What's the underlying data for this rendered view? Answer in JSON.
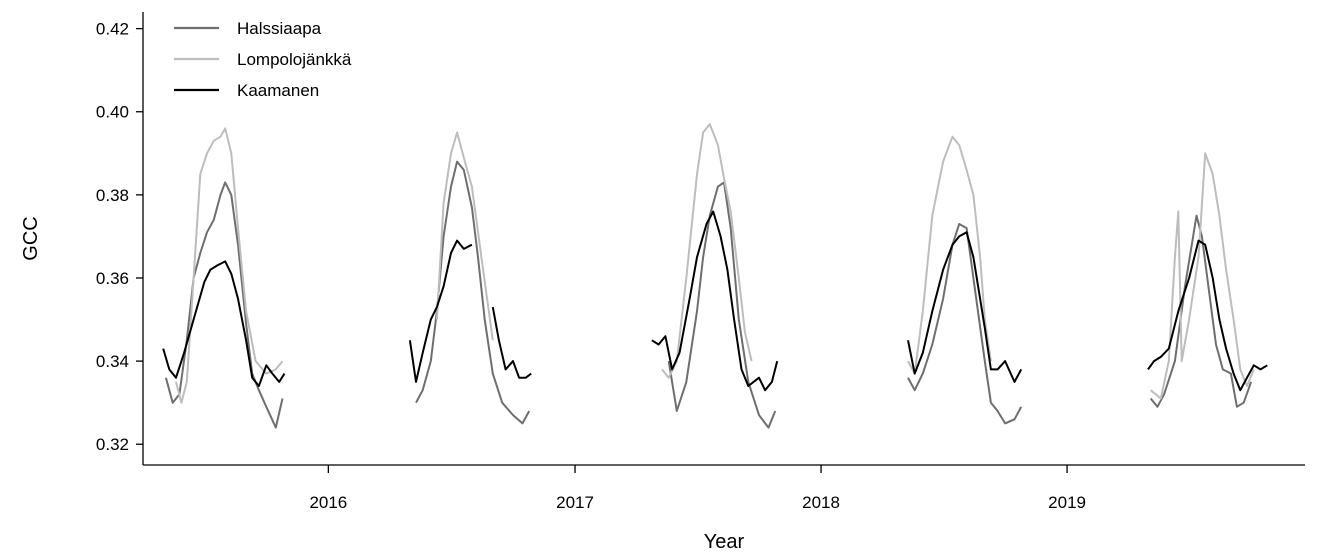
{
  "chart_data": {
    "type": "line",
    "xlabel": "Year",
    "ylabel": "GCC",
    "xlim": [
      "2015-04-01",
      "2019-12-20"
    ],
    "ylim": [
      0.315,
      0.424
    ],
    "x_ticks": [
      "2016-01-01",
      "2017-01-01",
      "2018-01-01",
      "2019-01-01"
    ],
    "x_tick_labels": [
      "2016",
      "2017",
      "2018",
      "2019"
    ],
    "y_ticks": [
      0.32,
      0.34,
      0.36,
      0.38,
      0.4,
      0.42
    ],
    "y_tick_labels": [
      "0.32",
      "0.34",
      "0.36",
      "0.38",
      "0.40",
      "0.42"
    ],
    "grid": false,
    "legend_position": "top-left",
    "series": [
      {
        "name": "Halssiaapa",
        "color": "#6e6e6e",
        "segments": [
          [
            [
              "2015-05-05",
              0.336
            ],
            [
              "2015-05-15",
              0.33
            ],
            [
              "2015-05-25",
              0.332
            ],
            [
              "2015-06-05",
              0.345
            ],
            [
              "2015-06-15",
              0.36
            ],
            [
              "2015-06-25",
              0.366
            ],
            [
              "2015-07-05",
              0.371
            ],
            [
              "2015-07-15",
              0.374
            ],
            [
              "2015-07-25",
              0.38
            ],
            [
              "2015-08-01",
              0.383
            ],
            [
              "2015-08-10",
              0.38
            ],
            [
              "2015-08-20",
              0.368
            ],
            [
              "2015-09-01",
              0.349
            ],
            [
              "2015-09-10",
              0.337
            ],
            [
              "2015-09-20",
              0.333
            ],
            [
              "2015-10-01",
              0.329
            ],
            [
              "2015-10-15",
              0.324
            ],
            [
              "2015-10-25",
              0.331
            ]
          ],
          [
            [
              "2016-05-10",
              0.33
            ],
            [
              "2016-05-20",
              0.333
            ],
            [
              "2016-06-01",
              0.34
            ],
            [
              "2016-06-10",
              0.352
            ],
            [
              "2016-06-20",
              0.37
            ],
            [
              "2016-07-01",
              0.382
            ],
            [
              "2016-07-10",
              0.388
            ],
            [
              "2016-07-20",
              0.386
            ],
            [
              "2016-08-01",
              0.377
            ],
            [
              "2016-08-10",
              0.365
            ],
            [
              "2016-08-20",
              0.35
            ],
            [
              "2016-09-01",
              0.337
            ],
            [
              "2016-09-15",
              0.33
            ],
            [
              "2016-10-01",
              0.327
            ],
            [
              "2016-10-15",
              0.325
            ],
            [
              "2016-10-25",
              0.328
            ]
          ],
          [
            [
              "2017-05-20",
              0.34
            ],
            [
              "2017-06-01",
              0.328
            ],
            [
              "2017-06-15",
              0.335
            ],
            [
              "2017-07-01",
              0.352
            ],
            [
              "2017-07-10",
              0.365
            ],
            [
              "2017-07-20",
              0.375
            ],
            [
              "2017-08-01",
              0.382
            ],
            [
              "2017-08-10",
              0.383
            ],
            [
              "2017-08-20",
              0.372
            ],
            [
              "2017-09-01",
              0.35
            ],
            [
              "2017-09-15",
              0.335
            ],
            [
              "2017-10-01",
              0.327
            ],
            [
              "2017-10-15",
              0.324
            ],
            [
              "2017-10-25",
              0.328
            ]
          ],
          [
            [
              "2018-05-10",
              0.336
            ],
            [
              "2018-05-20",
              0.333
            ],
            [
              "2018-06-01",
              0.337
            ],
            [
              "2018-06-15",
              0.344
            ],
            [
              "2018-07-01",
              0.355
            ],
            [
              "2018-07-15",
              0.368
            ],
            [
              "2018-07-25",
              0.373
            ],
            [
              "2018-08-05",
              0.372
            ],
            [
              "2018-08-15",
              0.36
            ],
            [
              "2018-09-01",
              0.34
            ],
            [
              "2018-09-10",
              0.33
            ],
            [
              "2018-09-20",
              0.328
            ],
            [
              "2018-10-01",
              0.325
            ],
            [
              "2018-10-15",
              0.326
            ],
            [
              "2018-10-25",
              0.329
            ]
          ],
          [
            [
              "2019-05-05",
              0.331
            ],
            [
              "2019-05-15",
              0.329
            ],
            [
              "2019-05-25",
              0.332
            ],
            [
              "2019-06-10",
              0.34
            ],
            [
              "2019-06-25",
              0.358
            ],
            [
              "2019-07-05",
              0.368
            ],
            [
              "2019-07-12",
              0.375
            ],
            [
              "2019-07-20",
              0.37
            ],
            [
              "2019-08-01",
              0.355
            ],
            [
              "2019-08-10",
              0.344
            ],
            [
              "2019-08-20",
              0.338
            ],
            [
              "2019-09-01",
              0.337
            ],
            [
              "2019-09-10",
              0.329
            ],
            [
              "2019-09-20",
              0.33
            ],
            [
              "2019-10-01",
              0.335
            ]
          ]
        ]
      },
      {
        "name": "Lompolojänkkä",
        "color": "#bdbdbd",
        "segments": [
          [
            [
              "2015-05-20",
              0.335
            ],
            [
              "2015-05-28",
              0.33
            ],
            [
              "2015-06-05",
              0.335
            ],
            [
              "2015-06-15",
              0.36
            ],
            [
              "2015-06-25",
              0.385
            ],
            [
              "2015-07-05",
              0.39
            ],
            [
              "2015-07-15",
              0.393
            ],
            [
              "2015-07-25",
              0.394
            ],
            [
              "2015-08-01",
              0.396
            ],
            [
              "2015-08-10",
              0.39
            ],
            [
              "2015-08-20",
              0.372
            ],
            [
              "2015-09-01",
              0.352
            ],
            [
              "2015-09-15",
              0.34
            ],
            [
              "2015-10-01",
              0.337
            ],
            [
              "2015-10-15",
              0.338
            ],
            [
              "2015-10-25",
              0.34
            ]
          ],
          [
            [
              "2016-06-10",
              0.35
            ],
            [
              "2016-06-20",
              0.378
            ],
            [
              "2016-07-01",
              0.39
            ],
            [
              "2016-07-10",
              0.395
            ],
            [
              "2016-07-20",
              0.389
            ],
            [
              "2016-08-01",
              0.382
            ],
            [
              "2016-08-15",
              0.365
            ],
            [
              "2016-09-01",
              0.345
            ]
          ],
          [
            [
              "2017-05-10",
              0.338
            ],
            [
              "2017-05-20",
              0.336
            ],
            [
              "2017-06-01",
              0.34
            ],
            [
              "2017-06-15",
              0.36
            ],
            [
              "2017-07-01",
              0.385
            ],
            [
              "2017-07-10",
              0.395
            ],
            [
              "2017-07-20",
              0.397
            ],
            [
              "2017-08-01",
              0.392
            ],
            [
              "2017-08-10",
              0.384
            ],
            [
              "2017-08-20",
              0.376
            ],
            [
              "2017-09-01",
              0.36
            ],
            [
              "2017-09-10",
              0.347
            ],
            [
              "2017-09-20",
              0.34
            ]
          ],
          [
            [
              "2018-05-10",
              0.34
            ],
            [
              "2018-05-20",
              0.337
            ],
            [
              "2018-06-01",
              0.352
            ],
            [
              "2018-06-15",
              0.375
            ],
            [
              "2018-07-01",
              0.388
            ],
            [
              "2018-07-15",
              0.394
            ],
            [
              "2018-07-25",
              0.392
            ],
            [
              "2018-08-05",
              0.386
            ],
            [
              "2018-08-15",
              0.38
            ],
            [
              "2018-08-25",
              0.365
            ],
            [
              "2018-09-01",
              0.35
            ],
            [
              "2018-09-10",
              0.34
            ]
          ],
          [
            [
              "2019-05-05",
              0.333
            ],
            [
              "2019-05-20",
              0.331
            ],
            [
              "2019-06-01",
              0.34
            ],
            [
              "2019-06-10",
              0.365
            ],
            [
              "2019-06-15",
              0.376
            ],
            [
              "2019-06-20",
              0.34
            ],
            [
              "2019-07-01",
              0.35
            ],
            [
              "2019-07-15",
              0.365
            ],
            [
              "2019-07-25",
              0.39
            ],
            [
              "2019-08-05",
              0.385
            ],
            [
              "2019-08-15",
              0.375
            ],
            [
              "2019-08-25",
              0.362
            ],
            [
              "2019-09-05",
              0.35
            ],
            [
              "2019-09-15",
              0.338
            ],
            [
              "2019-09-25",
              0.334
            ],
            [
              "2019-10-05",
              0.338
            ]
          ]
        ]
      },
      {
        "name": "Kaamanen",
        "color": "#000000",
        "segments": [
          [
            [
              "2015-05-01",
              0.343
            ],
            [
              "2015-05-10",
              0.338
            ],
            [
              "2015-05-20",
              0.336
            ],
            [
              "2015-06-01",
              0.342
            ],
            [
              "2015-06-15",
              0.35
            ],
            [
              "2015-07-01",
              0.359
            ],
            [
              "2015-07-10",
              0.362
            ],
            [
              "2015-07-20",
              0.363
            ],
            [
              "2015-08-01",
              0.364
            ],
            [
              "2015-08-10",
              0.361
            ],
            [
              "2015-08-20",
              0.355
            ],
            [
              "2015-09-01",
              0.345
            ],
            [
              "2015-09-10",
              0.336
            ],
            [
              "2015-09-20",
              0.334
            ],
            [
              "2015-10-01",
              0.339
            ],
            [
              "2015-10-10",
              0.337
            ],
            [
              "2015-10-20",
              0.335
            ],
            [
              "2015-10-28",
              0.337
            ]
          ],
          [
            [
              "2016-05-01",
              0.345
            ],
            [
              "2016-05-10",
              0.335
            ],
            [
              "2016-05-20",
              0.342
            ],
            [
              "2016-06-01",
              0.35
            ],
            [
              "2016-06-10",
              0.353
            ],
            [
              "2016-06-20",
              0.358
            ],
            [
              "2016-07-01",
              0.366
            ],
            [
              "2016-07-10",
              0.369
            ],
            [
              "2016-07-20",
              0.367
            ],
            [
              "2016-08-01",
              0.368
            ]
          ],
          [
            [
              "2016-09-01",
              0.353
            ],
            [
              "2016-09-10",
              0.345
            ],
            [
              "2016-09-20",
              0.338
            ],
            [
              "2016-10-01",
              0.34
            ],
            [
              "2016-10-10",
              0.336
            ],
            [
              "2016-10-20",
              0.336
            ],
            [
              "2016-10-28",
              0.337
            ]
          ],
          [
            [
              "2017-04-25",
              0.345
            ],
            [
              "2017-05-05",
              0.344
            ],
            [
              "2017-05-15",
              0.346
            ],
            [
              "2017-05-25",
              0.338
            ],
            [
              "2017-06-05",
              0.342
            ],
            [
              "2017-06-20",
              0.355
            ],
            [
              "2017-07-01",
              0.365
            ],
            [
              "2017-07-15",
              0.373
            ],
            [
              "2017-07-25",
              0.376
            ],
            [
              "2017-08-05",
              0.37
            ],
            [
              "2017-08-15",
              0.362
            ],
            [
              "2017-08-25",
              0.35
            ],
            [
              "2017-09-05",
              0.338
            ],
            [
              "2017-09-15",
              0.334
            ],
            [
              "2017-10-01",
              0.336
            ],
            [
              "2017-10-10",
              0.333
            ],
            [
              "2017-10-20",
              0.335
            ],
            [
              "2017-10-28",
              0.34
            ]
          ],
          [
            [
              "2018-05-10",
              0.345
            ],
            [
              "2018-05-20",
              0.337
            ],
            [
              "2018-06-01",
              0.342
            ],
            [
              "2018-06-15",
              0.352
            ],
            [
              "2018-07-01",
              0.362
            ],
            [
              "2018-07-15",
              0.368
            ],
            [
              "2018-07-25",
              0.37
            ],
            [
              "2018-08-05",
              0.371
            ],
            [
              "2018-08-15",
              0.365
            ],
            [
              "2018-09-01",
              0.348
            ],
            [
              "2018-09-10",
              0.338
            ],
            [
              "2018-09-20",
              0.338
            ],
            [
              "2018-10-01",
              0.34
            ],
            [
              "2018-10-15",
              0.335
            ],
            [
              "2018-10-25",
              0.338
            ]
          ],
          [
            [
              "2019-05-01",
              0.338
            ],
            [
              "2019-05-10",
              0.34
            ],
            [
              "2019-05-20",
              0.341
            ],
            [
              "2019-06-01",
              0.343
            ],
            [
              "2019-06-15",
              0.352
            ],
            [
              "2019-07-01",
              0.36
            ],
            [
              "2019-07-15",
              0.369
            ],
            [
              "2019-07-25",
              0.368
            ],
            [
              "2019-08-05",
              0.36
            ],
            [
              "2019-08-15",
              0.35
            ],
            [
              "2019-08-25",
              0.343
            ],
            [
              "2019-09-05",
              0.337
            ],
            [
              "2019-09-15",
              0.333
            ],
            [
              "2019-09-25",
              0.336
            ],
            [
              "2019-10-05",
              0.339
            ],
            [
              "2019-10-15",
              0.338
            ],
            [
              "2019-10-25",
              0.339
            ]
          ]
        ]
      }
    ]
  }
}
